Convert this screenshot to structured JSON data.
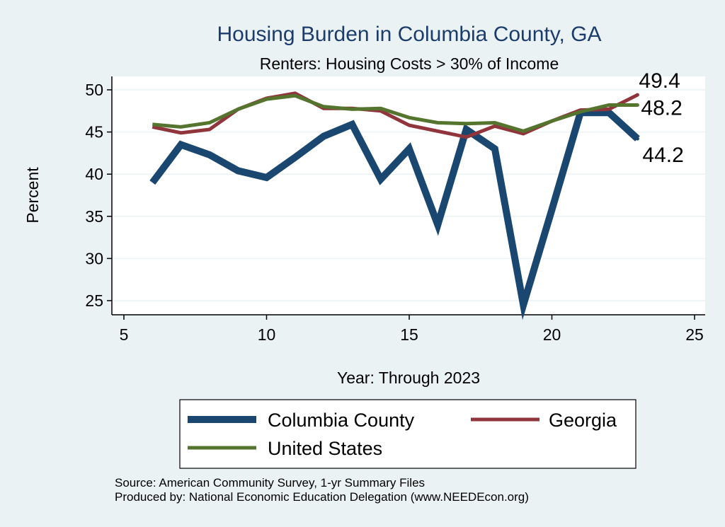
{
  "chart_data": {
    "type": "line",
    "title": "Housing Burden in Columbia County, GA",
    "subtitle": "Renters: Housing Costs > 30% of Income",
    "xlabel": "Year: Through 2023",
    "ylabel": "Percent",
    "xlim": [
      5,
      25
    ],
    "ylim": [
      23.5,
      51
    ],
    "xticks": [
      5,
      10,
      15,
      20,
      25
    ],
    "yticks": [
      25,
      30,
      35,
      40,
      45,
      50
    ],
    "grid": true,
    "x": [
      6,
      7,
      8,
      9,
      10,
      11,
      12,
      13,
      14,
      15,
      16,
      17,
      18,
      19,
      20,
      21,
      22,
      23
    ],
    "series": [
      {
        "name": "Columbia County",
        "color": "#1a476f",
        "values": [
          39,
          43.5,
          42.3,
          40.4,
          39.6,
          42,
          44.5,
          45.9,
          39.4,
          43,
          34,
          45.3,
          43,
          24.5,
          35.8,
          47.3,
          47.3,
          44.2
        ],
        "end_label": "44.2"
      },
      {
        "name": "Georgia",
        "color": "#90353b",
        "values": [
          45.6,
          44.9,
          45.3,
          47.7,
          49,
          49.6,
          47.8,
          47.8,
          47.5,
          45.8,
          45.1,
          44.4,
          45.7,
          44.8,
          46.3,
          47.6,
          47.7,
          49.4
        ],
        "end_label": "49.4"
      },
      {
        "name": "United States",
        "color": "#55752f",
        "values": [
          45.9,
          45.6,
          46.1,
          47.7,
          48.9,
          49.3,
          48,
          47.7,
          47.8,
          46.7,
          46.1,
          46,
          46.1,
          45.1,
          46.3,
          47.4,
          48.2,
          48.2
        ],
        "end_label": "48.2"
      }
    ],
    "legend": {
      "position": "bottom",
      "entries": [
        "Columbia County",
        "Georgia",
        "United States"
      ]
    },
    "notes": [
      "Source: American Community Survey, 1-yr Summary Files",
      "Produced by: National Economic Education Delegation (www.NEEDEcon.org)"
    ]
  }
}
